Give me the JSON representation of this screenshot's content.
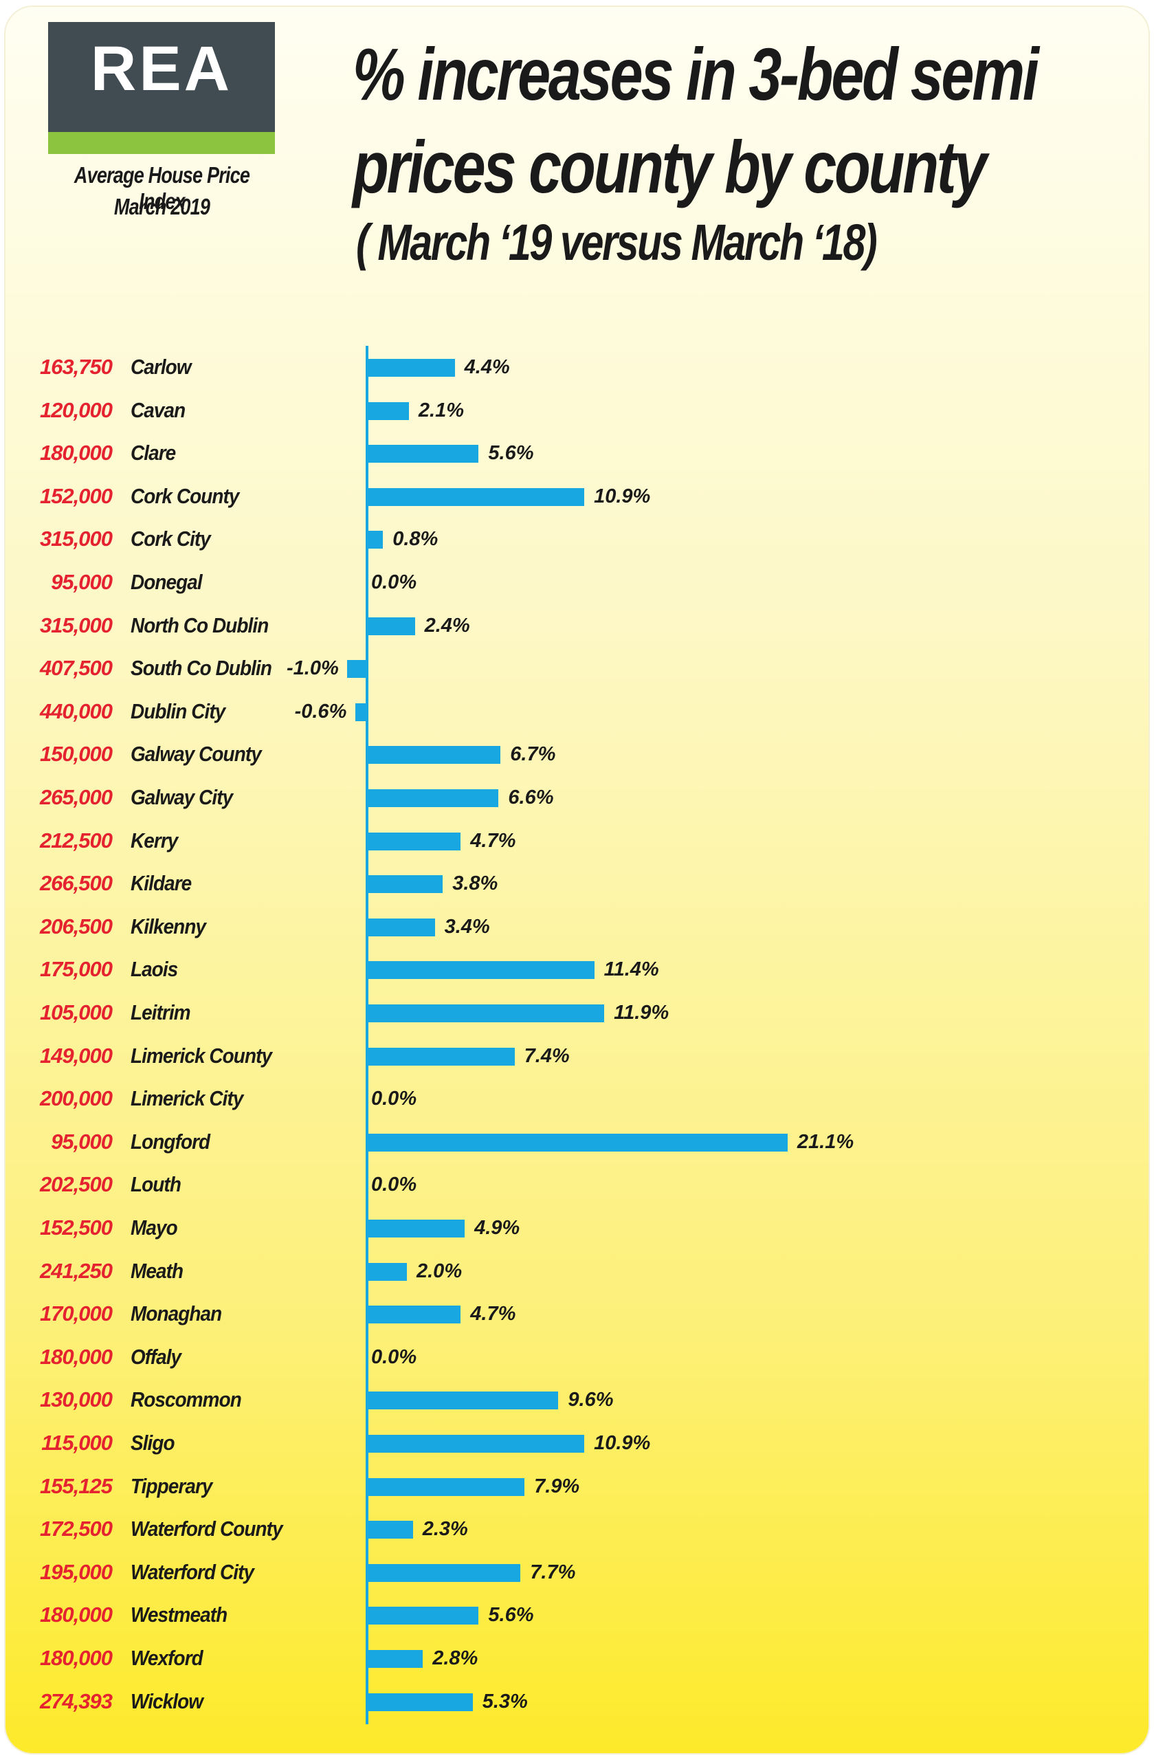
{
  "logo": {
    "brand": "REA",
    "caption_line1": "Average House Price Index",
    "caption_line2": "March 2019"
  },
  "header": {
    "title_line1": "% increases  in 3-bed semi",
    "title_line2": "prices county by county",
    "subtitle": "( March ‘19 versus March ‘18)"
  },
  "colors": {
    "bar": "#19a7e1",
    "price_text": "#e5222f",
    "logo_bg": "#414b52",
    "logo_stripe": "#8cc43f"
  },
  "chart_data": {
    "type": "bar",
    "orientation": "horizontal",
    "unit": "%",
    "categories": [
      "Carlow",
      "Cavan",
      "Clare",
      "Cork County",
      "Cork City",
      "Donegal",
      "North Co Dublin",
      "South Co Dublin",
      "Dublin City",
      "Galway County",
      "Galway City",
      "Kerry",
      "Kildare",
      "Kilkenny",
      "Laois",
      "Leitrim",
      "Limerick County",
      "Limerick City",
      "Longford",
      "Louth",
      "Mayo",
      "Meath",
      "Monaghan",
      "Offaly",
      "Roscommon",
      "Sligo",
      "Tipperary",
      "Waterford County",
      "Waterford City",
      "Westmeath",
      "Wexford",
      "Wicklow"
    ],
    "prices": [
      "163,750",
      "120,000",
      "180,000",
      "152,000",
      "315,000",
      "95,000",
      "315,000",
      "407,500",
      "440,000",
      "150,000",
      "265,000",
      "212,500",
      "266,500",
      "206,500",
      "175,000",
      "105,000",
      "149,000",
      "200,000",
      "95,000",
      "202,500",
      "152,500",
      "241,250",
      "170,000",
      "180,000",
      "130,000",
      "115,000",
      "155,125",
      "172,500",
      "195,000",
      "180,000",
      "180,000",
      "274,393"
    ],
    "values": [
      4.4,
      2.1,
      5.6,
      10.9,
      0.8,
      0.0,
      2.4,
      -1.0,
      -0.6,
      6.7,
      6.6,
      4.7,
      3.8,
      3.4,
      11.4,
      11.9,
      7.4,
      0.0,
      21.1,
      0.0,
      4.9,
      2.0,
      4.7,
      0.0,
      9.6,
      10.9,
      7.9,
      2.3,
      7.7,
      5.6,
      2.8,
      5.3
    ],
    "value_labels": [
      "4.4%",
      "2.1%",
      "5.6%",
      "10.9%",
      "0.8%",
      "0.0%",
      "2.4%",
      "-1.0%",
      "-0.6%",
      "6.7%",
      "6.6%",
      "4.7%",
      "3.8%",
      "3.4%",
      "11.4%",
      "11.9%",
      "7.4%",
      "0.0%",
      "21.1%",
      "0.0%",
      "4.9%",
      "2.0%",
      "4.7%",
      "0.0%",
      "9.6%",
      "10.9%",
      "7.9%",
      "2.3%",
      "7.7%",
      "5.6%",
      "2.8%",
      "5.3%"
    ]
  }
}
